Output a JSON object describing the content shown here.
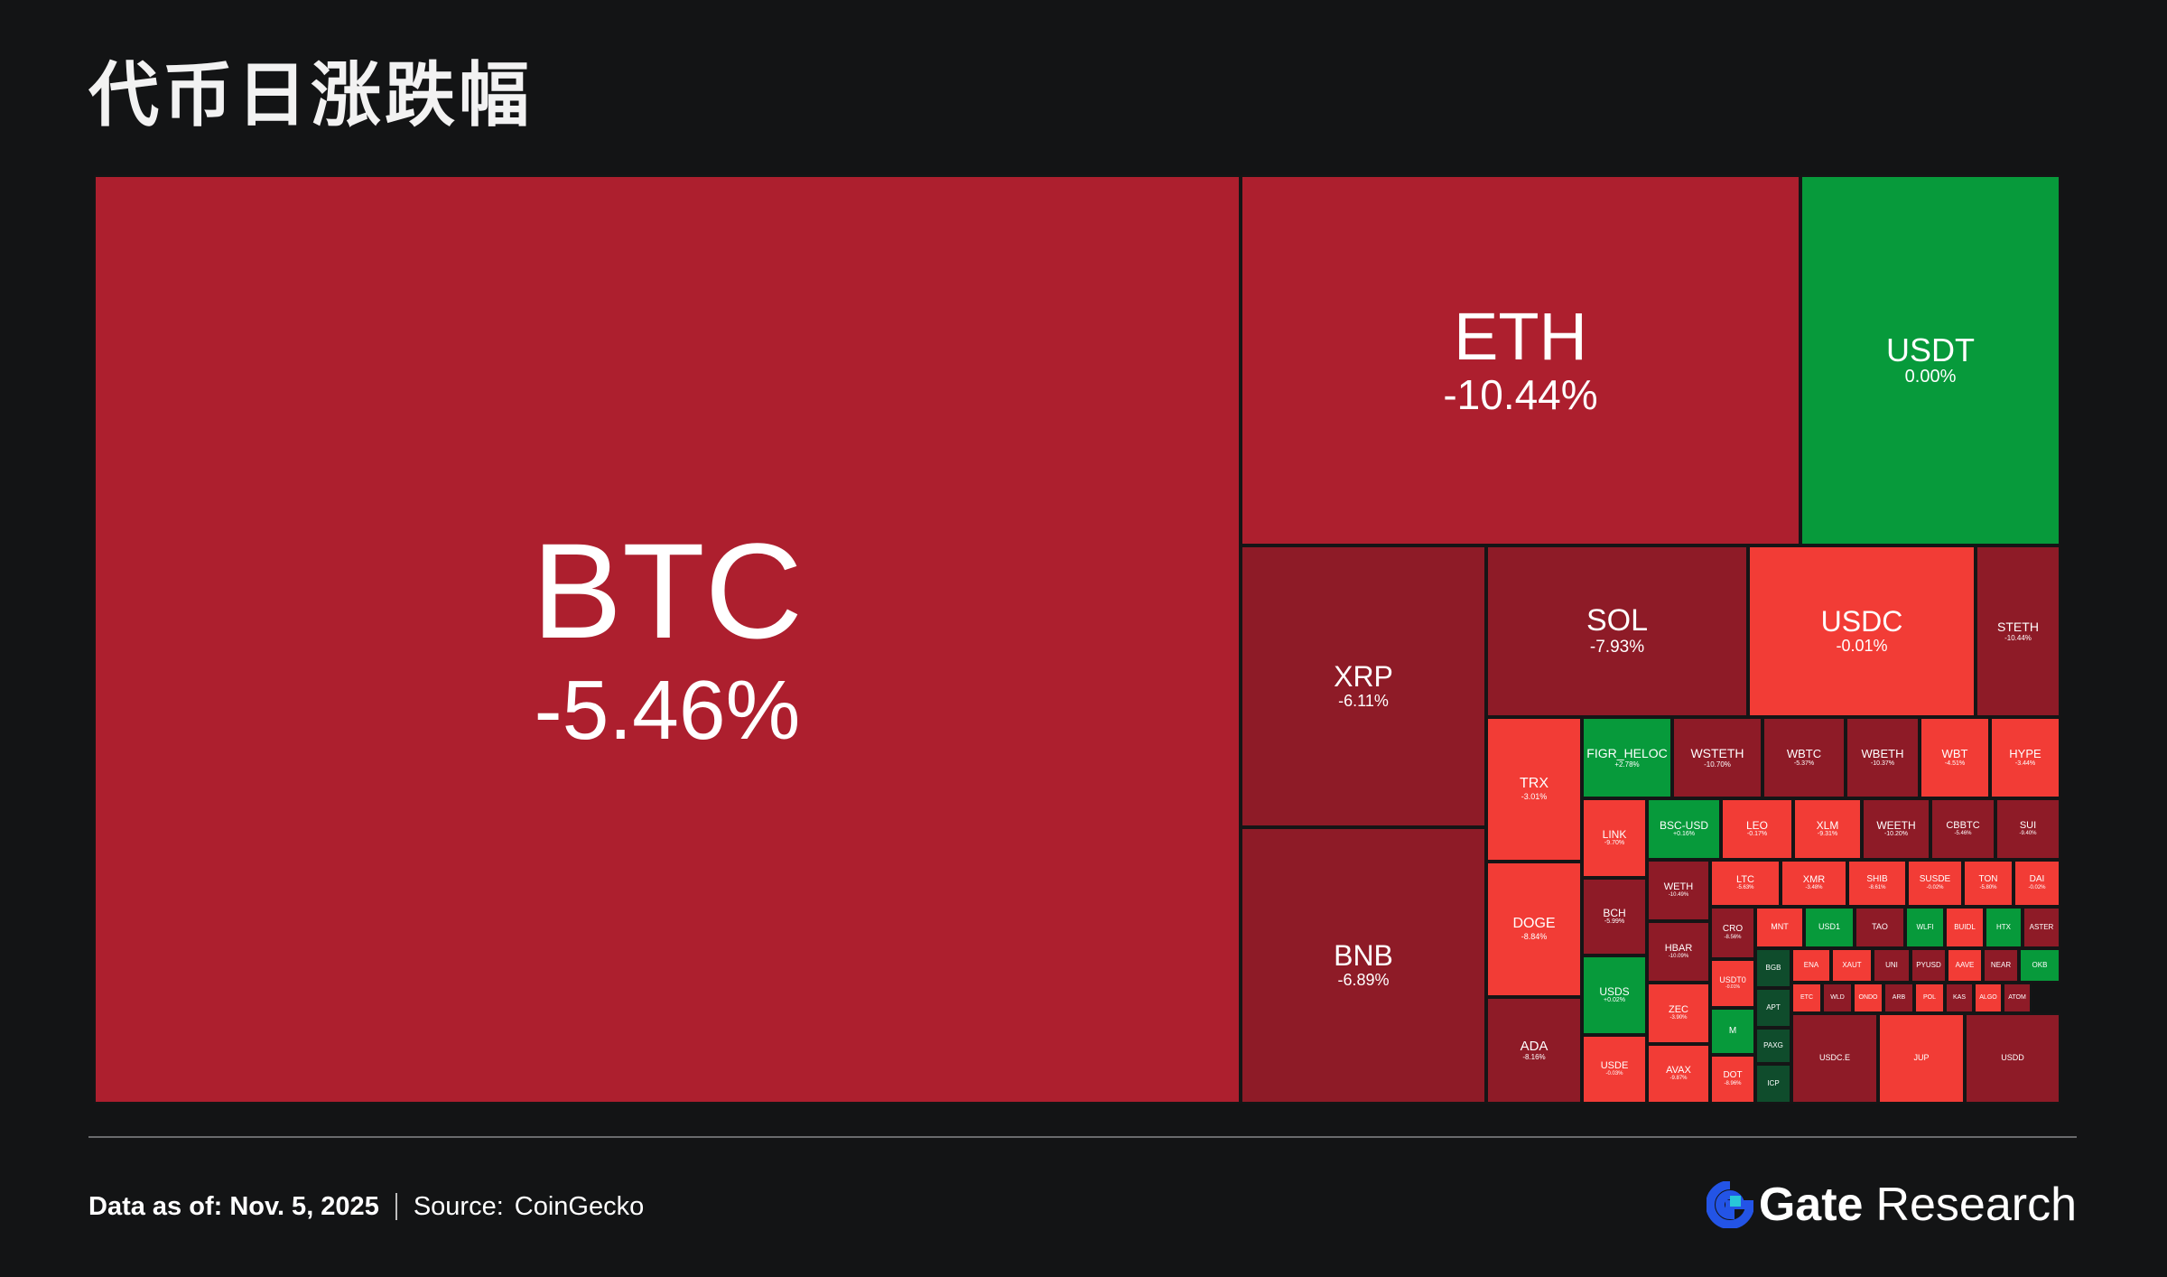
{
  "title": "代币日涨跌幅",
  "footer": {
    "date_text": "Data as of: Nov. 5, 2025",
    "source_label": "Source:",
    "source_name": "CoinGecko"
  },
  "brand": {
    "gate": "Gate",
    "research": "Research",
    "logo_color": "#2354e6"
  },
  "colors": {
    "deep_red": "#ad1f2e",
    "red": "#8e1b27",
    "bright_red": "#f23c36",
    "green": "#079a3b",
    "dark_green": "#0f4c2c"
  },
  "chart_data": {
    "type": "treemap",
    "title": "代币日涨跌幅",
    "tiles": [
      {
        "symbol": "BTC",
        "change": "-5.46%"
      },
      {
        "symbol": "ETH",
        "change": "-10.44%"
      },
      {
        "symbol": "USDT",
        "change": "0.00%"
      },
      {
        "symbol": "XRP",
        "change": "-6.11%"
      },
      {
        "symbol": "BNB",
        "change": "-6.89%"
      },
      {
        "symbol": "SOL",
        "change": "-7.93%"
      },
      {
        "symbol": "USDC",
        "change": "-0.01%"
      },
      {
        "symbol": "STETH",
        "change": "-10.44%"
      },
      {
        "symbol": "TRX",
        "change": "-3.01%"
      },
      {
        "symbol": "DOGE",
        "change": "-8.84%"
      },
      {
        "symbol": "ADA",
        "change": "-8.16%"
      },
      {
        "symbol": "FIGR_HELOC",
        "change": "+2.78%"
      },
      {
        "symbol": "WSTETH",
        "change": "-10.70%"
      },
      {
        "symbol": "WBTC",
        "change": "-5.37%"
      },
      {
        "symbol": "WBETH",
        "change": "-10.37%"
      },
      {
        "symbol": "WBT",
        "change": "-4.51%"
      },
      {
        "symbol": "HYPE",
        "change": "-3.44%"
      },
      {
        "symbol": "LINK",
        "change": "-9.70%"
      },
      {
        "symbol": "BSC-USD",
        "change": "+0.16%"
      },
      {
        "symbol": "LEO",
        "change": "-0.17%"
      },
      {
        "symbol": "XLM",
        "change": "-9.31%"
      },
      {
        "symbol": "WEETH",
        "change": "-10.20%"
      },
      {
        "symbol": "CBBTC",
        "change": "-5.46%"
      },
      {
        "symbol": "SUI",
        "change": "-9.40%"
      },
      {
        "symbol": "BCH",
        "change": "-5.99%"
      },
      {
        "symbol": "WETH",
        "change": "-10.49%"
      },
      {
        "symbol": "LTC",
        "change": "-5.63%"
      },
      {
        "symbol": "XMR",
        "change": "-3.48%"
      },
      {
        "symbol": "SHIB",
        "change": "-8.61%"
      },
      {
        "symbol": "SUSDE",
        "change": "-0.02%"
      },
      {
        "symbol": "TON",
        "change": "-5.80%"
      },
      {
        "symbol": "DAI",
        "change": "-0.02%"
      },
      {
        "symbol": "HBAR",
        "change": "-10.09%"
      },
      {
        "symbol": "USDS",
        "change": "+0.02%"
      },
      {
        "symbol": "ZEC",
        "change": "-3.90%"
      },
      {
        "symbol": "USDE",
        "change": "-0.03%"
      },
      {
        "symbol": "AVAX",
        "change": "-9.87%"
      },
      {
        "symbol": "CRO",
        "change": "-8.56%"
      },
      {
        "symbol": "USDT0",
        "change": "-0.01%"
      },
      {
        "symbol": "M",
        "change": ""
      },
      {
        "symbol": "DOT",
        "change": "-8.96%"
      },
      {
        "symbol": "BGB",
        "change": ""
      },
      {
        "symbol": "ENA",
        "change": ""
      },
      {
        "symbol": "XAUT",
        "change": ""
      },
      {
        "symbol": "UNI",
        "change": ""
      },
      {
        "symbol": "PYUSD",
        "change": ""
      },
      {
        "symbol": "AAVE",
        "change": ""
      },
      {
        "symbol": "TAO",
        "change": ""
      },
      {
        "symbol": "NEAR",
        "change": ""
      },
      {
        "symbol": "MNT",
        "change": ""
      },
      {
        "symbol": "USD1",
        "change": ""
      },
      {
        "symbol": "WLFI",
        "change": ""
      },
      {
        "symbol": "BUIDL",
        "change": ""
      },
      {
        "symbol": "HTX",
        "change": ""
      },
      {
        "symbol": "ASTER",
        "change": ""
      },
      {
        "symbol": "APT",
        "change": ""
      },
      {
        "symbol": "PAXG",
        "change": ""
      },
      {
        "symbol": "OKB",
        "change": ""
      },
      {
        "symbol": "ETC",
        "change": ""
      },
      {
        "symbol": "ICP",
        "change": ""
      },
      {
        "symbol": "WLD",
        "change": ""
      },
      {
        "symbol": "ONDO",
        "change": ""
      },
      {
        "symbol": "ARB",
        "change": ""
      },
      {
        "symbol": "POL",
        "change": ""
      },
      {
        "symbol": "KAS",
        "change": ""
      },
      {
        "symbol": "ALGO",
        "change": ""
      },
      {
        "symbol": "ATOM",
        "change": ""
      },
      {
        "symbol": "USDC.E",
        "change": ""
      },
      {
        "symbol": "JUP",
        "change": ""
      },
      {
        "symbol": "USDD",
        "change": ""
      }
    ]
  }
}
